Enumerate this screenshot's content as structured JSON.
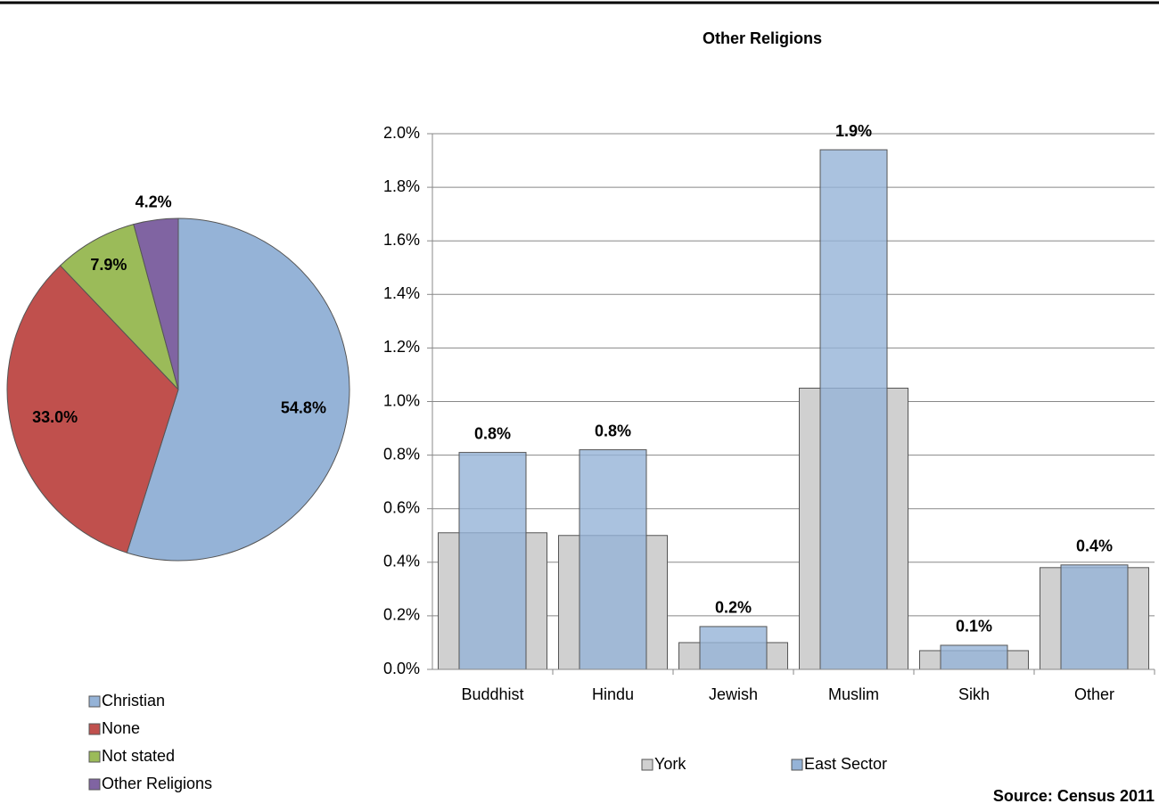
{
  "chart_data": [
    {
      "type": "pie",
      "categories": [
        "Christian",
        "None",
        "Not stated",
        "Other Religions"
      ],
      "values": [
        54.8,
        33.0,
        7.9,
        4.2
      ],
      "value_labels": [
        "54.8%",
        "33.0%",
        "7.9%",
        "4.2%"
      ],
      "colors": [
        "#95b3d7",
        "#c0504d",
        "#9bbb59",
        "#8064a2"
      ],
      "legend": "bottom-left"
    },
    {
      "type": "bar",
      "title": "Other Religions",
      "categories": [
        "Buddhist",
        "Hindu",
        "Jewish",
        "Muslim",
        "Sikh",
        "Other"
      ],
      "series": [
        {
          "name": "York",
          "color": "#d0d0d0",
          "values": [
            0.51,
            0.5,
            0.1,
            1.05,
            0.07,
            0.38
          ]
        },
        {
          "name": "East Sector",
          "color": "#95b3d7",
          "values": [
            0.81,
            0.82,
            0.16,
            1.94,
            0.09,
            0.39
          ],
          "value_labels": [
            "0.8%",
            "0.8%",
            "0.2%",
            "1.9%",
            "0.1%",
            "0.4%"
          ]
        }
      ],
      "ylim": [
        0,
        2
      ],
      "yticks": [
        {
          "value": 0,
          "label": "0.0%"
        },
        {
          "value": 0.2,
          "label": "0.2%"
        },
        {
          "value": 0.4,
          "label": "0.4%"
        },
        {
          "value": 0.6,
          "label": "0.6%"
        },
        {
          "value": 0.8,
          "label": "0.8%"
        },
        {
          "value": 1.0,
          "label": "1.0%"
        },
        {
          "value": 1.2,
          "label": "1.2%"
        },
        {
          "value": 1.4,
          "label": "1.4%"
        },
        {
          "value": 1.6,
          "label": "1.6%"
        },
        {
          "value": 1.8,
          "label": "1.8%"
        },
        {
          "value": 2.0,
          "label": "2.0%"
        }
      ],
      "grid": true,
      "legend": "bottom",
      "source": "Source: Census 2011"
    }
  ]
}
